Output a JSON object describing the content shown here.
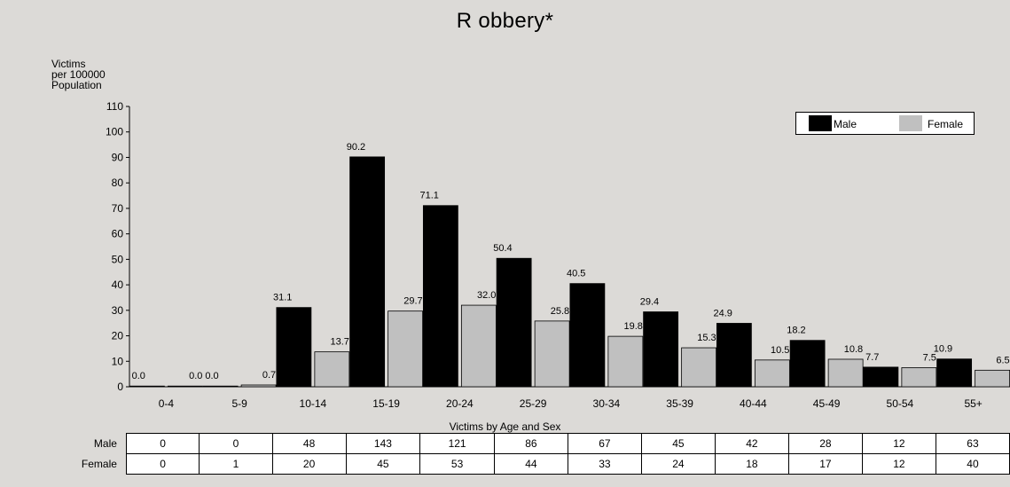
{
  "chart_data": {
    "type": "bar",
    "title": "R obbery*",
    "ylabel_lines": [
      "Victims",
      "per 100000",
      "Population"
    ],
    "xlabel": "Victims by Age and Sex",
    "categories": [
      "0-4",
      "5-9",
      "10-14",
      "15-19",
      "20-24",
      "25-29",
      "30-34",
      "35-39",
      "40-44",
      "45-49",
      "50-54",
      "55+"
    ],
    "series": [
      {
        "name": "Male",
        "color": "#000000",
        "values": [
          0.0,
          0.0,
          31.1,
          90.2,
          71.1,
          50.4,
          40.5,
          29.4,
          24.9,
          18.2,
          7.7,
          10.9
        ],
        "labels": [
          "0.0",
          "0.0",
          "31.1",
          "90.2",
          "71.1",
          "50.4",
          "40.5",
          "29.4",
          "24.9",
          "18.2",
          "7.7",
          "10.9"
        ]
      },
      {
        "name": "Female",
        "color": "#c0c0c0",
        "values": [
          0.0,
          0.7,
          13.7,
          29.7,
          32.0,
          25.8,
          19.8,
          15.3,
          10.5,
          10.8,
          7.5,
          6.5
        ],
        "labels": [
          "0.0",
          "0.7",
          "13.7",
          "29.7",
          "32.0",
          "25.8",
          "19.8",
          "15.3",
          "10.5",
          "10.8",
          "7.5",
          "6.5"
        ]
      }
    ],
    "ylim": [
      0,
      110
    ],
    "yticks": [
      0,
      10,
      20,
      30,
      40,
      50,
      60,
      70,
      80,
      90,
      100,
      110
    ],
    "grid": false,
    "legend_position": "top-right",
    "table": {
      "rows": [
        {
          "label": "Male",
          "values": [
            "0",
            "0",
            "48",
            "143",
            "121",
            "86",
            "67",
            "45",
            "42",
            "28",
            "12",
            "63"
          ]
        },
        {
          "label": "Female",
          "values": [
            "0",
            "1",
            "20",
            "45",
            "53",
            "44",
            "33",
            "24",
            "18",
            "17",
            "12",
            "40"
          ]
        }
      ]
    }
  }
}
